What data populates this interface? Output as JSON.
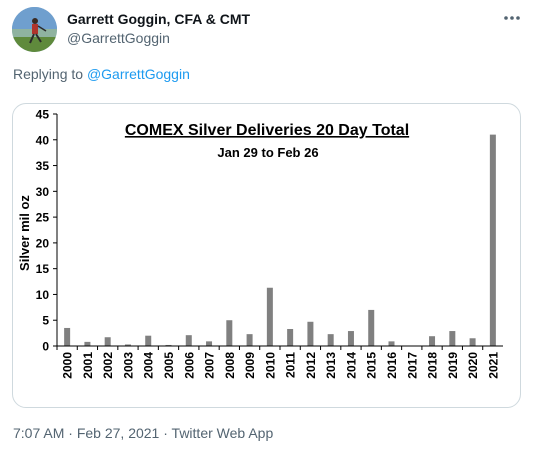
{
  "tweet": {
    "author_name": "Garrett Goggin, CFA & CMT",
    "author_handle": "@GarrettGoggin",
    "replying_prefix": "Replying to",
    "replying_to": "@GarrettGoggin",
    "time": "7:07 AM",
    "date": "Feb 27, 2021",
    "separator": "·",
    "client": "Twitter Web App",
    "more_icon": "ellipsis-icon"
  },
  "colors": {
    "link": "#1d9bf0",
    "secondary_text": "#536471",
    "bar": "#808080"
  },
  "chart_data": {
    "type": "bar",
    "title": "COMEX Silver Deliveries 20 Day Total",
    "subtitle": "Jan 29 to Feb 26",
    "ylabel": "Silver mil oz",
    "xlabel": "",
    "ylim": [
      0,
      45
    ],
    "yticks": [
      0,
      5,
      10,
      15,
      20,
      25,
      30,
      35,
      40,
      45
    ],
    "grid": false,
    "legend": "none",
    "categories": [
      "2000",
      "2001",
      "2002",
      "2003",
      "2004",
      "2005",
      "2006",
      "2007",
      "2008",
      "2009",
      "2010",
      "2011",
      "2012",
      "2013",
      "2014",
      "2015",
      "2016",
      "2017",
      "2018",
      "2019",
      "2020",
      "2021"
    ],
    "values": [
      3.5,
      0.8,
      1.7,
      0.3,
      2.0,
      0.2,
      2.1,
      0.9,
      5.0,
      2.3,
      11.3,
      3.3,
      4.7,
      2.3,
      2.9,
      7.0,
      0.9,
      0.0,
      1.9,
      2.9,
      1.5,
      41.0
    ]
  }
}
